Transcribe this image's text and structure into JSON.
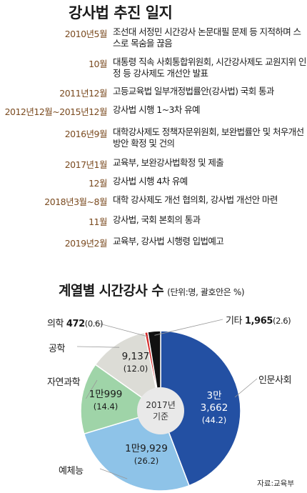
{
  "timeline": {
    "title": "강사법 추진 일지",
    "events": [
      {
        "date": "2010년5월",
        "desc": "조선대 서정민 시간강사 논문대필 문제 등 지적하며 스스로 목숨을 끊음"
      },
      {
        "date": "10월",
        "desc": "대통령 직속 사회통합위원회, 시간강사제도 교원지위 인정 등 강사제도 개선안 발표"
      },
      {
        "date": "2011년12월",
        "desc": "고등교육법 일부개정법률안(강사법) 국회 통과"
      },
      {
        "date": "2012년12월~2015년12월",
        "desc": "강사법 시행 1~3차 유예"
      },
      {
        "date": "2016년9월",
        "desc": "대학강사제도 정책자문위원회, 보완법률안 및 처우개선방안 확정 및 건의"
      },
      {
        "date": "2017년1월",
        "desc": "교육부, 보완강사법확정 및 제출"
      },
      {
        "date": "12월",
        "desc": "강사법 시행 4차 유예"
      },
      {
        "date": "2018년3월~8월",
        "desc": "대학 강사제도 개선 협의회, 강사법 개선안 마련"
      },
      {
        "date": "11월",
        "desc": "강사법, 국회 본회의 통과"
      },
      {
        "date": "2019년2월",
        "desc": "교육부, 강사법 시행령 입법예고"
      }
    ]
  },
  "chart_data": {
    "type": "pie",
    "title": "계열별 시간강사 수",
    "subtitle": "(단위:명, 괄호안은 %)",
    "center_label": [
      "2017년",
      "기준"
    ],
    "source": "자료:교육부",
    "slices": [
      {
        "name": "인문사회",
        "value_text": "3만\n3,662",
        "value": 33662,
        "percent": 44.2,
        "color": "#2350a3"
      },
      {
        "name": "예체능",
        "value_text": "1만9,929",
        "value": 19929,
        "percent": 26.2,
        "color": "#8ec3e8"
      },
      {
        "name": "자연과학",
        "value_text": "1만999",
        "value": 10999,
        "percent": 14.4,
        "color": "#9fd4a8"
      },
      {
        "name": "공학",
        "value_text": "9,137",
        "value": 9137,
        "percent": 12.0,
        "color": "#dcdcd6"
      },
      {
        "name": "의학",
        "value_text": "472",
        "value": 472,
        "percent": 0.6,
        "color": "#d42b2b"
      },
      {
        "name": "기타",
        "value_text": "1,965",
        "value": 1965,
        "percent": 2.6,
        "color": "#111111"
      }
    ]
  }
}
